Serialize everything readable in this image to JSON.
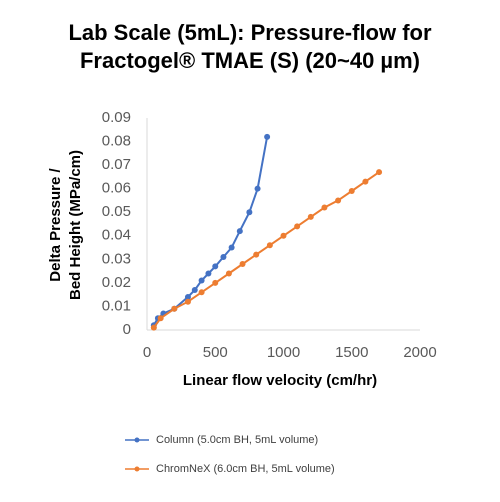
{
  "chart_data": {
    "type": "line",
    "title": [
      "Lab Scale (5mL): Pressure-flow for",
      "Fractogel® TMAE (S) (20~40 µm)"
    ],
    "xlabel": "Linear flow velocity (cm/hr)",
    "ylabel": [
      "Delta Pressure /",
      "Bed Height (MPa/cm)"
    ],
    "xlim": [
      0,
      2000
    ],
    "xticks": [
      0,
      500,
      1000,
      1500,
      2000
    ],
    "ylim": [
      0,
      0.09
    ],
    "yticks": [
      0,
      0.01,
      0.02,
      0.03,
      0.04,
      0.05,
      0.06,
      0.07,
      0.08,
      0.09
    ],
    "grid": false,
    "legend": "bottom",
    "series": [
      {
        "name": "Column (5.0cm BH, 5mL volume)",
        "color": "#4472c4",
        "x": [
          50,
          80,
          120,
          200,
          300,
          350,
          400,
          450,
          500,
          560,
          620,
          680,
          750,
          810,
          880
        ],
        "values": [
          0.002,
          0.005,
          0.007,
          0.009,
          0.014,
          0.017,
          0.021,
          0.024,
          0.027,
          0.031,
          0.035,
          0.042,
          0.05,
          0.06,
          0.082
        ]
      },
      {
        "name": "ChromNeX (6.0cm BH, 5mL volume)",
        "color": "#ed7d31",
        "x": [
          50,
          100,
          200,
          300,
          400,
          500,
          600,
          700,
          800,
          900,
          1000,
          1100,
          1200,
          1300,
          1400,
          1500,
          1600,
          1700
        ],
        "values": [
          0.001,
          0.005,
          0.009,
          0.012,
          0.016,
          0.02,
          0.024,
          0.028,
          0.032,
          0.036,
          0.04,
          0.044,
          0.048,
          0.052,
          0.055,
          0.059,
          0.063,
          0.067
        ]
      }
    ]
  }
}
